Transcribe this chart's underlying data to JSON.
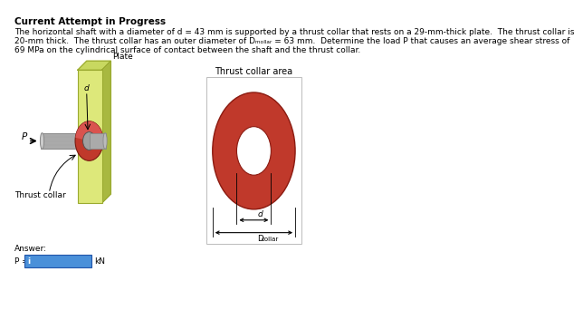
{
  "title": "Current Attempt in Progress",
  "desc1": "The horizontal shaft with a diameter of d = 43 mm is supported by a thrust collar that rests on a 29-mm-thick plate.  The thrust collar is",
  "desc2": "20-mm thick.  The thrust collar has an outer diameter of D",
  "desc2b": "collar",
  "desc2c": " = 63 mm.  Determine the load P that causes an average shear stress of",
  "desc3": "69 MPa on the cylindrical surface of contact between the shaft and the thrust collar.",
  "label_thrust_collar_area": "Thrust collar area",
  "label_plate": "Plate",
  "label_d": "d",
  "label_thrust_collar": "Thrust collar",
  "label_P": "P",
  "label_Dcollar": "D",
  "label_collar_sub": "collar",
  "answer_label": "Answer:",
  "P_eq": "P =",
  "kN_label": "kN",
  "bg_color": "#ffffff",
  "plate_color": "#dde87a",
  "plate_color_top": "#c8d860",
  "plate_color_right": "#a8b840",
  "plate_edge_color": "#9aaa30",
  "collar_red": "#c0392b",
  "collar_red_light": "#d9534f",
  "shaft_light": "#c8c8c8",
  "shaft_mid": "#aaaaaa",
  "shaft_dark": "#888888",
  "input_box_color": "#4a90d9",
  "text_color": "#000000"
}
